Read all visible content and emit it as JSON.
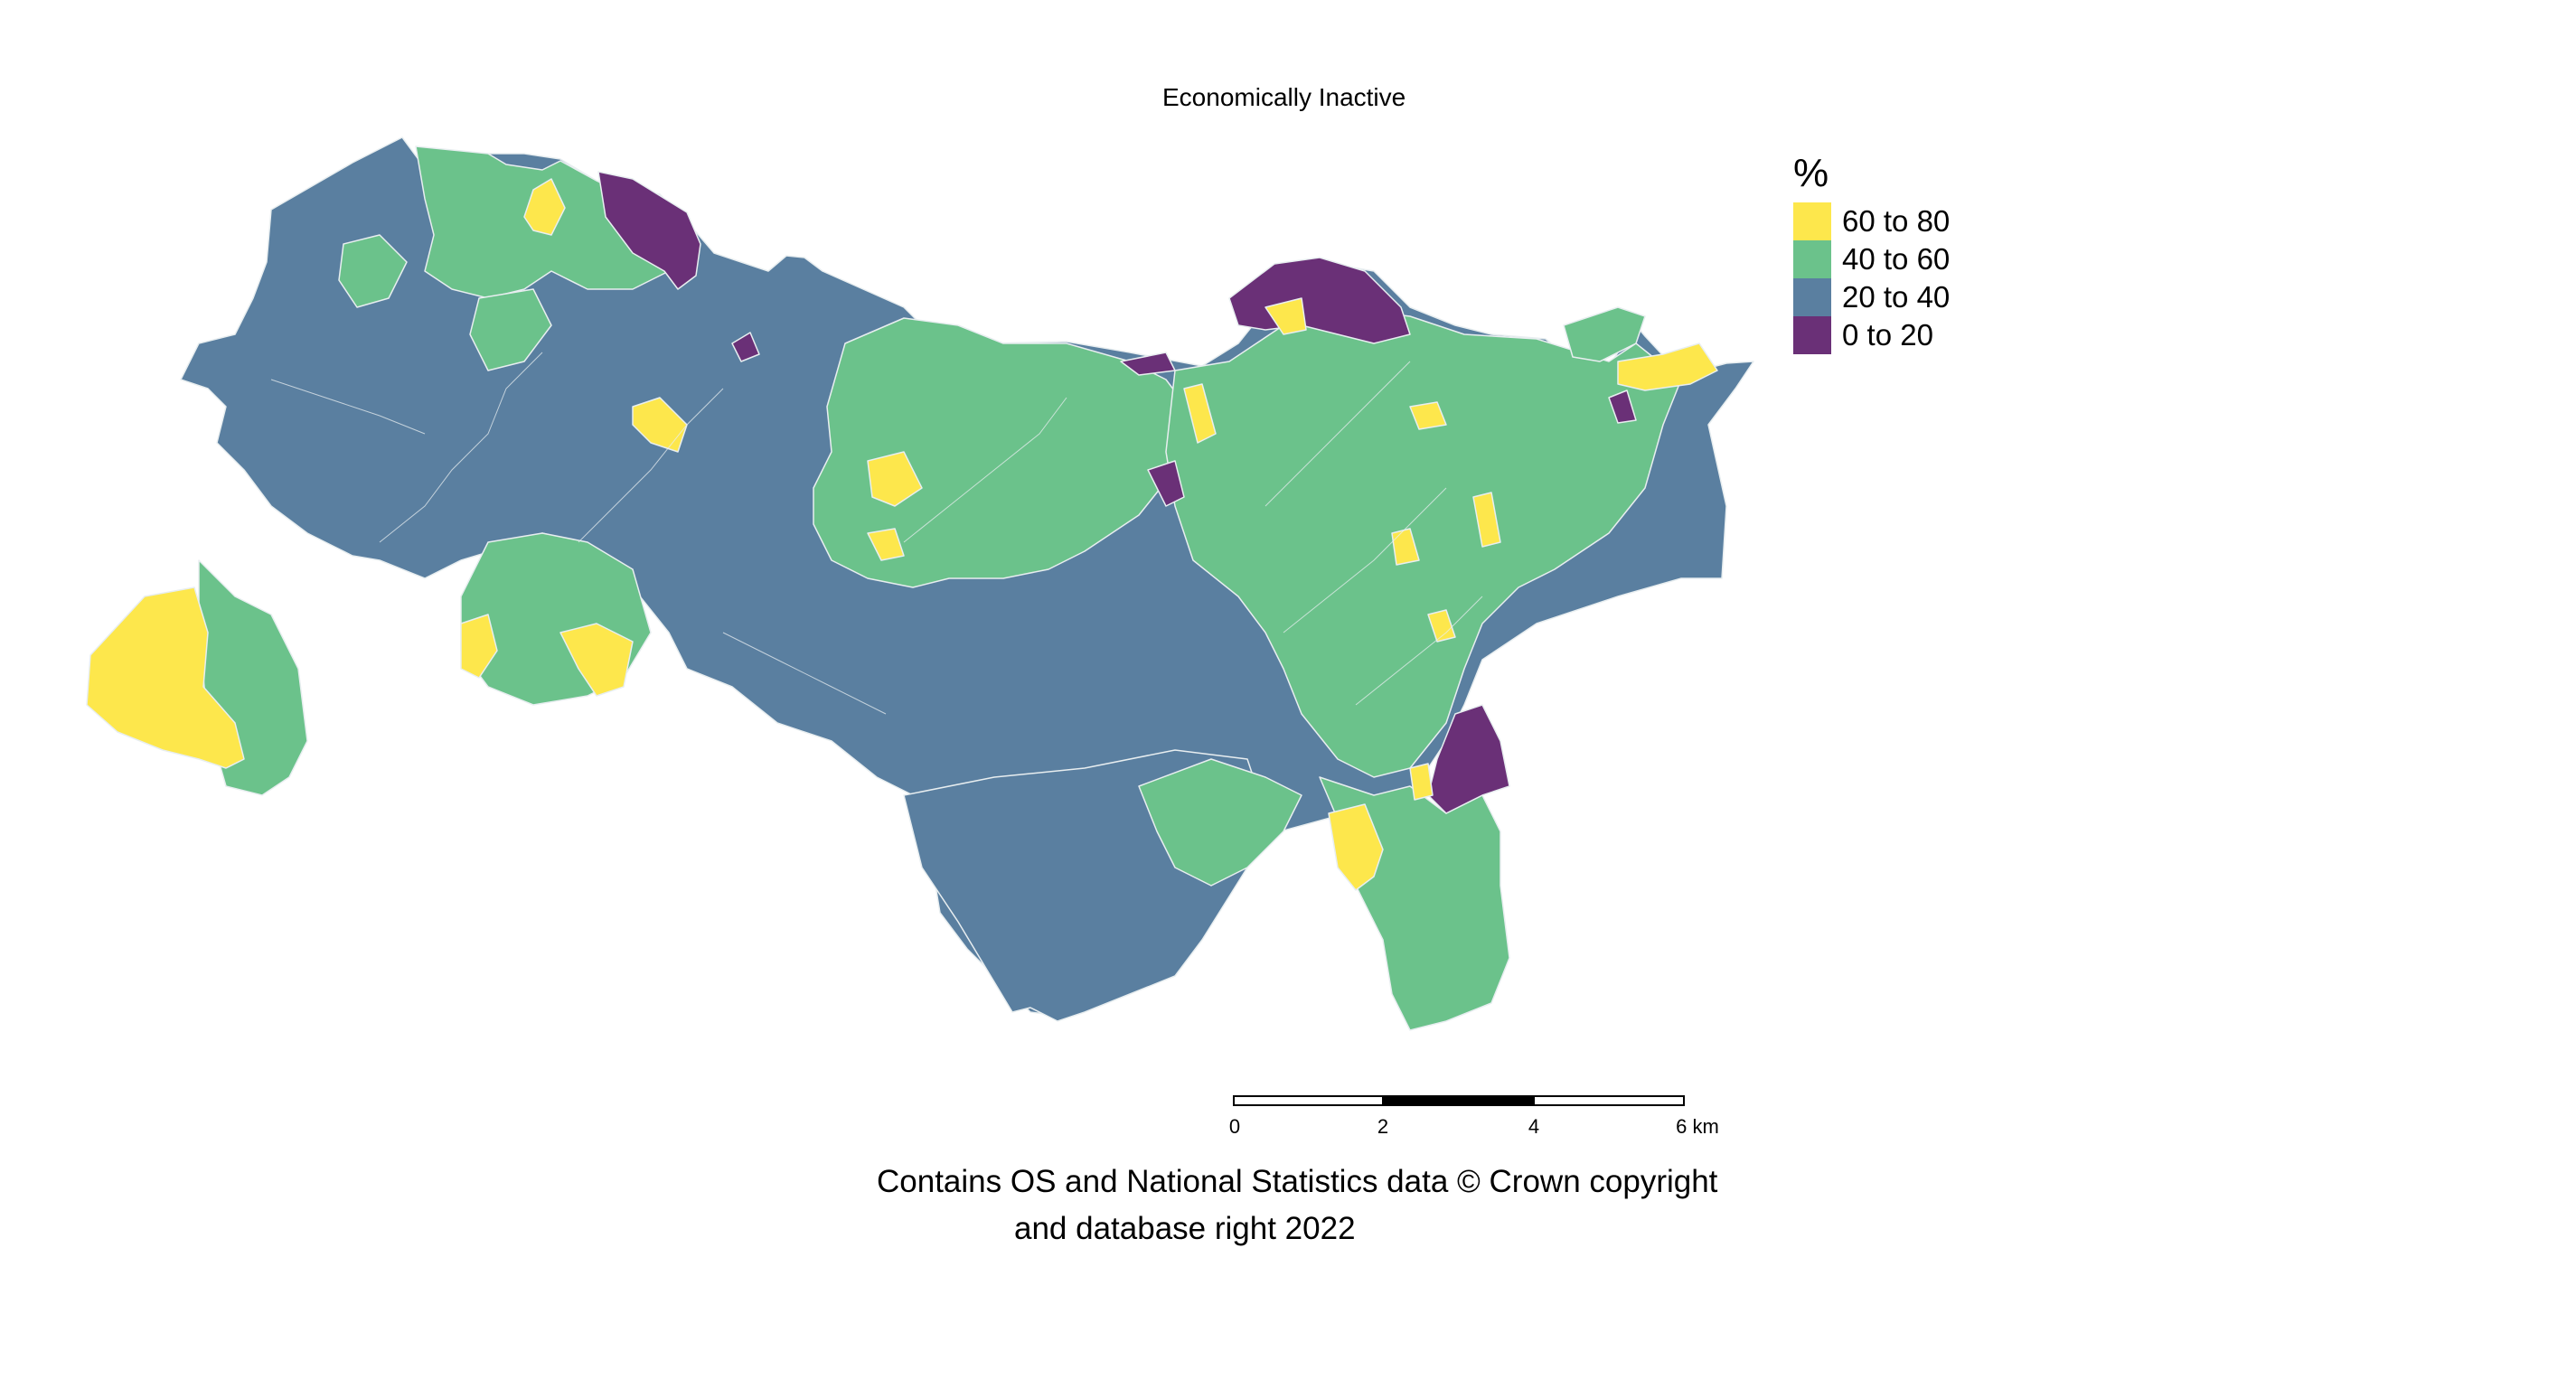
{
  "title": "Economically Inactive",
  "legend": {
    "title": "%",
    "items": [
      {
        "label": "60 to 80",
        "color": "#FDE74C"
      },
      {
        "label": "40 to 60",
        "color": "#6BC28B"
      },
      {
        "label": "20 to 40",
        "color": "#5A7FA0"
      },
      {
        "label": "0 to 20",
        "color": "#6A3077"
      }
    ]
  },
  "scalebar": {
    "ticks": [
      "0",
      "2",
      "4",
      "6 km"
    ]
  },
  "credits": {
    "line1": "Contains OS and National Statistics data © Crown copyright",
    "line2": "and database right 2022"
  }
}
